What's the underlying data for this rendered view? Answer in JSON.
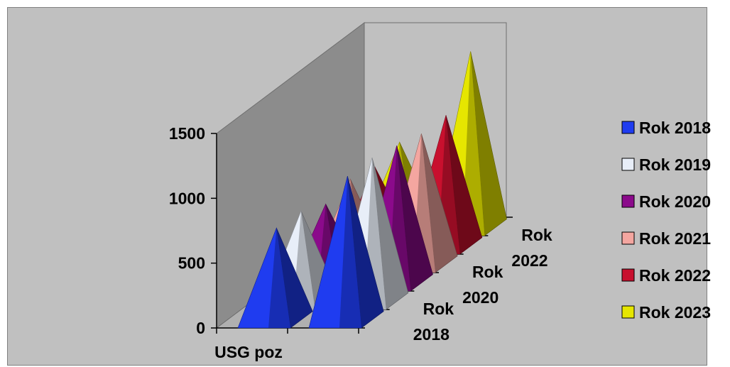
{
  "chart_data": {
    "type": "bar",
    "style": "3d-pyramid",
    "title": "",
    "xlabel": "",
    "ylabel": "",
    "categories": [
      "USG poz",
      ""
    ],
    "depth_labels": [
      "Rok 2018",
      "Rok 2020",
      "Rok 2022"
    ],
    "ylim": [
      0,
      1500
    ],
    "yticks": [
      0,
      500,
      1000,
      1500
    ],
    "series": [
      {
        "name": "Rok 2018",
        "color": "#1f3cf0",
        "values": [
          700,
          1100
        ]
      },
      {
        "name": "Rok 2019",
        "color": "#e8eef8",
        "values": [
          690,
          1100
        ]
      },
      {
        "name": "Rok 2020",
        "color": "#8b0a8b",
        "values": [
          600,
          1050
        ]
      },
      {
        "name": "Rok 2021",
        "color": "#f4a6a0",
        "values": [
          650,
          1000
        ]
      },
      {
        "name": "Rok 2022",
        "color": "#c8102e",
        "values": [
          600,
          1000
        ]
      },
      {
        "name": "Rok 2023",
        "color": "#e6e600",
        "values": [
          650,
          1350
        ]
      }
    ],
    "legend": "right",
    "grid": false
  }
}
